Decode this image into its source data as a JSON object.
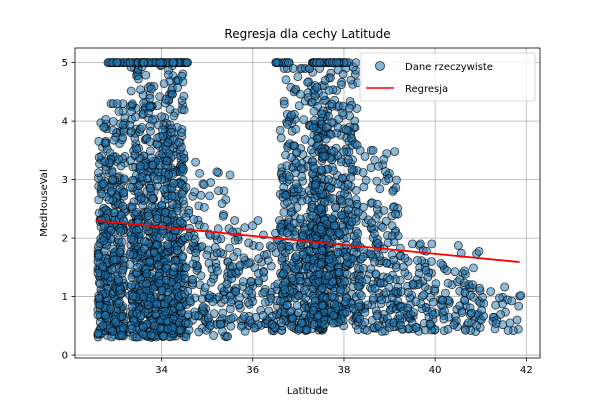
{
  "chart_data": {
    "type": "scatter",
    "title": "Regresja dla cechy Latitude",
    "xlabel": "Latitude",
    "ylabel": "MedHouseVal",
    "xlim": [
      32.1,
      42.3
    ],
    "ylim": [
      -0.05,
      5.25
    ],
    "xticks": [
      34,
      36,
      38,
      40,
      42
    ],
    "yticks": [
      0,
      1,
      2,
      3,
      4,
      5
    ],
    "grid": true,
    "legend_position": "top-right",
    "point_color": "#1f77b4",
    "line_color": "#ff0000",
    "series": [
      {
        "name": "Dane rzeczywiste",
        "kind": "scatter",
        "clusters": [
          {
            "x": [
              32.6,
              33.2
            ],
            "y": [
              0.3,
              4.3
            ],
            "n": 420
          },
          {
            "x": [
              33.3,
              34.5
            ],
            "y": [
              0.3,
              5.0
            ],
            "n": 950
          },
          {
            "x": [
              34.5,
              35.5
            ],
            "y": [
              0.3,
              3.3
            ],
            "n": 160
          },
          {
            "x": [
              35.5,
              36.6
            ],
            "y": [
              0.4,
              2.3
            ],
            "n": 130
          },
          {
            "x": [
              36.6,
              37.6
            ],
            "y": [
              0.4,
              4.9
            ],
            "n": 450
          },
          {
            "x": [
              37.3,
              38.3
            ],
            "y": [
              0.5,
              5.0
            ],
            "n": 520
          },
          {
            "x": [
              38.3,
              39.2
            ],
            "y": [
              0.4,
              3.5
            ],
            "n": 190
          },
          {
            "x": [
              39.2,
              41.0
            ],
            "y": [
              0.4,
              1.9
            ],
            "n": 170
          },
          {
            "x": [
              41.0,
              41.9
            ],
            "y": [
              0.4,
              1.2
            ],
            "n": 30
          }
        ],
        "capped_strips": [
          {
            "x": [
              32.8,
              33.6
            ],
            "y": 5.0
          },
          {
            "x": [
              33.6,
              34.7
            ],
            "y": 5.0
          },
          {
            "x": [
              36.5,
              36.8
            ],
            "y": 5.0
          },
          {
            "x": [
              37.3,
              38.1
            ],
            "y": 5.0
          }
        ]
      },
      {
        "name": "Regresja",
        "kind": "line",
        "x": [
          32.55,
          41.85
        ],
        "y": [
          2.3,
          1.59
        ]
      }
    ]
  }
}
